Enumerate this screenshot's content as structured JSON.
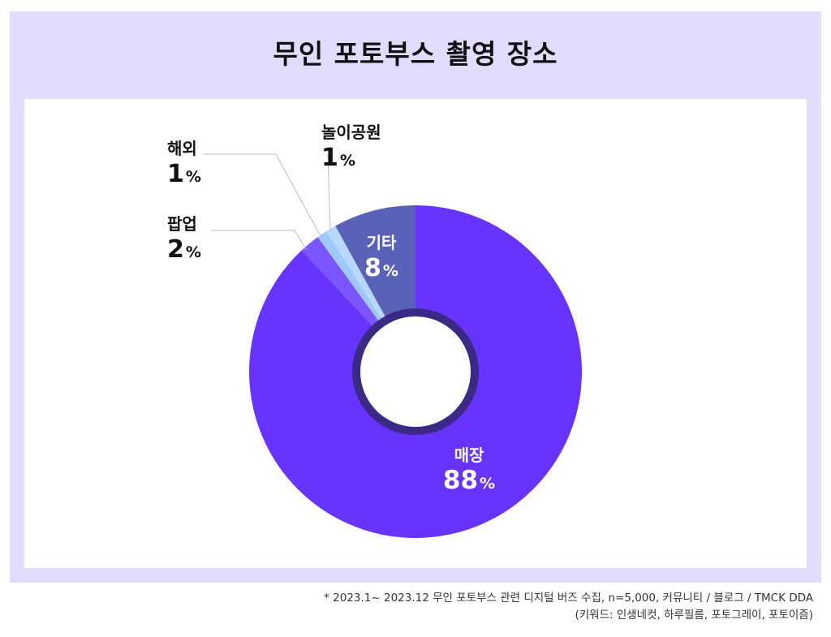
{
  "title": "무인 포토부스 촬영 장소",
  "chart_data": {
    "type": "pie",
    "donut": true,
    "unit": "%",
    "slices": [
      {
        "label": "매장",
        "value": 88,
        "color": "#6633ff"
      },
      {
        "label": "팝업",
        "value": 2,
        "color": "#7b55ff"
      },
      {
        "label": "해외",
        "value": 1,
        "color": "#9fc8ff"
      },
      {
        "label": "놀이공원",
        "value": 1,
        "color": "#b8d8ff"
      },
      {
        "label": "기타",
        "value": 8,
        "color": "#5a62b8"
      }
    ],
    "colors": {
      "inner_ring": "#3a2a86",
      "hole": "#ffffff"
    }
  },
  "notes": [
    "* 2023.1~ 2023.12 무인 포토부스 관련 디지털 버즈 수집, n=5,000, 커뮤니티 / 블로그 / TMCK DDA",
    "(키워드: 인생네컷, 하루필름, 포토그레이, 포토이즘)"
  ]
}
